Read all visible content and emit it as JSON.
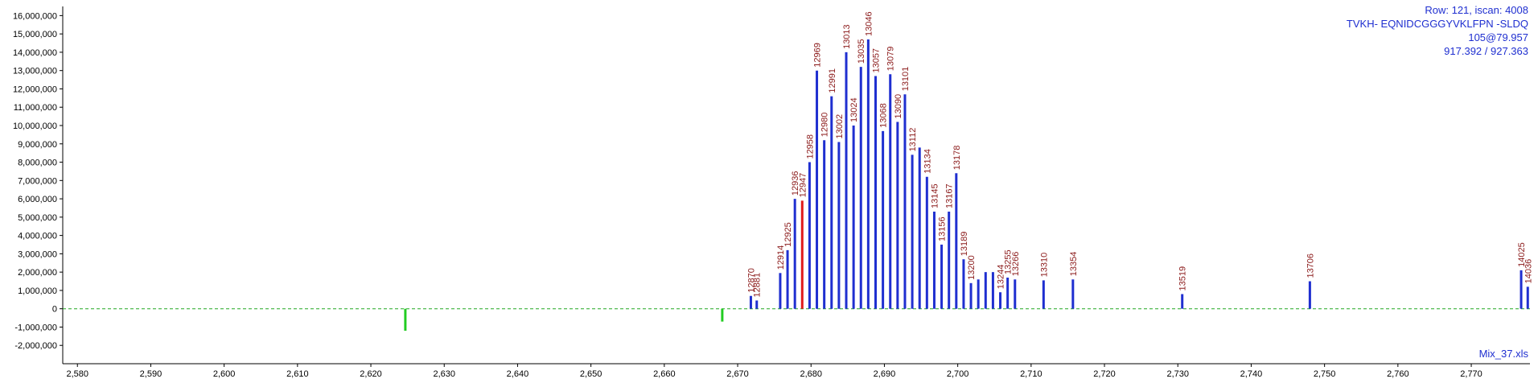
{
  "info": {
    "row_scan": "Row: 121, iscan: 4008",
    "sequence": "TVKH- EQNIDCGGGYVKLFPN -SLDQ",
    "charge_time": "105@79.957",
    "mz": "917.392 / 927.363"
  },
  "footer": {
    "file": "Mix_37.xls"
  },
  "chart_data": {
    "type": "bar",
    "xlim": [
      2578,
      2778
    ],
    "ylim": [
      -3000000,
      16500000
    ],
    "x_ticks": [
      2580,
      2590,
      2600,
      2610,
      2620,
      2630,
      2640,
      2650,
      2660,
      2670,
      2680,
      2690,
      2700,
      2710,
      2720,
      2730,
      2740,
      2750,
      2760,
      2770
    ],
    "x_tick_labels": [
      "2,580",
      "2,590",
      "2,600",
      "2,610",
      "2,620",
      "2,630",
      "2,640",
      "2,650",
      "2,660",
      "2,670",
      "2,680",
      "2,690",
      "2,700",
      "2,710",
      "2,720",
      "2,730",
      "2,740",
      "2,750",
      "2,760",
      "2,770"
    ],
    "y_ticks": [
      -2000000,
      -1000000,
      0,
      1000000,
      2000000,
      3000000,
      4000000,
      5000000,
      6000000,
      7000000,
      8000000,
      9000000,
      10000000,
      11000000,
      12000000,
      13000000,
      14000000,
      15000000,
      16000000
    ],
    "y_tick_labels": [
      "-2,000,000",
      "-1,000,000",
      "0",
      "1,000,000",
      "2,000,000",
      "3,000,000",
      "4,000,000",
      "5,000,000",
      "6,000,000",
      "7,000,000",
      "8,000,000",
      "9,000,000",
      "10,000,000",
      "11,000,000",
      "12,000,000",
      "13,000,000",
      "14,000,000",
      "15,000,000",
      "16,000,000"
    ],
    "baseline": {
      "value": 0,
      "style": "dashed",
      "color": "#22a822"
    },
    "colors": {
      "main": "#1f2fd0",
      "highlight": "#e01b1b",
      "negative": "#22cc22",
      "label": "#8b1a1a"
    },
    "series": [
      {
        "values": [
          {
            "x": 2624.7,
            "y": -1200000,
            "color": "#22cc22"
          },
          {
            "x": 2667.9,
            "y": -700000,
            "color": "#22cc22"
          },
          {
            "x": 2671.8,
            "y": 700000,
            "label": "12870"
          },
          {
            "x": 2672.6,
            "y": 450000,
            "label": "12881"
          },
          {
            "x": 2675.8,
            "y": 1950000,
            "label": "12914"
          },
          {
            "x": 2676.8,
            "y": 3200000,
            "label": "12925"
          },
          {
            "x": 2677.8,
            "y": 6000000,
            "label": "12936"
          },
          {
            "x": 2678.8,
            "y": 5900000,
            "label": "12947",
            "color": "#e01b1b"
          },
          {
            "x": 2679.8,
            "y": 8000000,
            "label": "12958"
          },
          {
            "x": 2680.8,
            "y": 13000000,
            "label": "12969"
          },
          {
            "x": 2681.8,
            "y": 9200000,
            "label": "12980"
          },
          {
            "x": 2682.8,
            "y": 11600000,
            "label": "12991"
          },
          {
            "x": 2683.8,
            "y": 9100000,
            "label": "13002"
          },
          {
            "x": 2684.8,
            "y": 14000000,
            "label": "13013"
          },
          {
            "x": 2685.8,
            "y": 10000000,
            "label": "13024"
          },
          {
            "x": 2686.8,
            "y": 13200000,
            "label": "13035"
          },
          {
            "x": 2687.8,
            "y": 14700000,
            "label": "13046"
          },
          {
            "x": 2688.8,
            "y": 12700000,
            "label": "13057"
          },
          {
            "x": 2689.8,
            "y": 9700000,
            "label": "13068"
          },
          {
            "x": 2690.8,
            "y": 12800000,
            "label": "13079"
          },
          {
            "x": 2691.8,
            "y": 10200000,
            "label": "13090"
          },
          {
            "x": 2692.8,
            "y": 11700000,
            "label": "13101"
          },
          {
            "x": 2693.8,
            "y": 8400000,
            "label": "13112"
          },
          {
            "x": 2694.8,
            "y": 8800000,
            "label": ""
          },
          {
            "x": 2695.8,
            "y": 7200000,
            "label": "13134"
          },
          {
            "x": 2696.8,
            "y": 5300000,
            "label": "13145"
          },
          {
            "x": 2697.8,
            "y": 3500000,
            "label": "13156"
          },
          {
            "x": 2698.8,
            "y": 5300000,
            "label": "13167"
          },
          {
            "x": 2699.8,
            "y": 7400000,
            "label": "13178"
          },
          {
            "x": 2700.8,
            "y": 2700000,
            "label": "13189"
          },
          {
            "x": 2701.8,
            "y": 1400000,
            "label": "13200"
          },
          {
            "x": 2702.8,
            "y": 1600000,
            "label": ""
          },
          {
            "x": 2703.8,
            "y": 2000000,
            "label": ""
          },
          {
            "x": 2704.8,
            "y": 2000000,
            "label": ""
          },
          {
            "x": 2705.8,
            "y": 900000,
            "label": "13244"
          },
          {
            "x": 2706.8,
            "y": 1700000,
            "label": "13255"
          },
          {
            "x": 2707.8,
            "y": 1600000,
            "label": "13266"
          },
          {
            "x": 2711.7,
            "y": 1550000,
            "label": "13310"
          },
          {
            "x": 2715.7,
            "y": 1600000,
            "label": "13354"
          },
          {
            "x": 2730.6,
            "y": 800000,
            "label": "13519"
          },
          {
            "x": 2748.0,
            "y": 1500000,
            "label": "13706"
          },
          {
            "x": 2776.8,
            "y": 2100000,
            "label": "14025"
          },
          {
            "x": 2777.7,
            "y": 1200000,
            "label": "14036"
          }
        ]
      }
    ]
  }
}
